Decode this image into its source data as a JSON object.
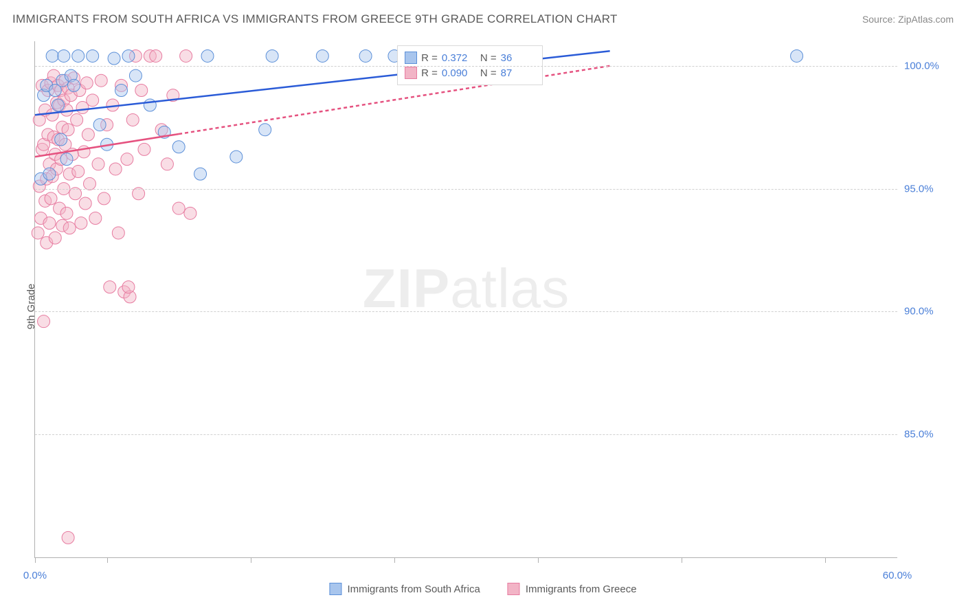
{
  "title": "IMMIGRANTS FROM SOUTH AFRICA VS IMMIGRANTS FROM GREECE 9TH GRADE CORRELATION CHART",
  "source": "Source: ZipAtlas.com",
  "watermark_zip": "ZIP",
  "watermark_atlas": "atlas",
  "chart": {
    "type": "scatter",
    "ylabel": "9th Grade",
    "ylim": [
      80,
      101
    ],
    "xlim": [
      0,
      60
    ],
    "y_ticks": [
      85,
      90,
      95,
      100
    ],
    "y_tick_labels": [
      "85.0%",
      "90.0%",
      "95.0%",
      "100.0%"
    ],
    "x_ticks": [
      0,
      5,
      15,
      25,
      35,
      45,
      55
    ],
    "x_tick_labels": {
      "left": "0.0%",
      "right": "60.0%"
    },
    "grid_color": "#d0d0d0",
    "axis_color": "#b0b0b0",
    "marker_radius": 9,
    "marker_opacity": 0.45,
    "series": [
      {
        "name": "Immigrants from South Africa",
        "color_fill": "#a8c5ed",
        "color_stroke": "#5b8fd8",
        "line_color": "#2a5bd7",
        "line_width": 2.5,
        "line_dash": "none",
        "r_value": "0.372",
        "n_value": "36",
        "regression": {
          "x1": 0,
          "y1": 98.0,
          "x2": 40,
          "y2": 100.6
        },
        "points": [
          [
            0.4,
            95.4
          ],
          [
            0.6,
            98.8
          ],
          [
            0.8,
            99.2
          ],
          [
            1.0,
            95.6
          ],
          [
            1.2,
            100.4
          ],
          [
            1.4,
            99.0
          ],
          [
            1.6,
            98.4
          ],
          [
            1.9,
            99.4
          ],
          [
            2.0,
            100.4
          ],
          [
            2.2,
            96.2
          ],
          [
            2.5,
            99.6
          ],
          [
            2.7,
            99.2
          ],
          [
            3.0,
            100.4
          ],
          [
            4.0,
            100.4
          ],
          [
            4.5,
            97.6
          ],
          [
            5.0,
            96.8
          ],
          [
            5.5,
            100.3
          ],
          [
            6.0,
            99.0
          ],
          [
            6.5,
            100.4
          ],
          [
            7.0,
            99.6
          ],
          [
            8.0,
            98.4
          ],
          [
            9.0,
            97.3
          ],
          [
            10.0,
            96.7
          ],
          [
            11.5,
            95.6
          ],
          [
            12.0,
            100.4
          ],
          [
            14.0,
            96.3
          ],
          [
            16.0,
            97.4
          ],
          [
            16.5,
            100.4
          ],
          [
            20.0,
            100.4
          ],
          [
            23.0,
            100.4
          ],
          [
            25.0,
            100.4
          ],
          [
            30.0,
            100.4
          ],
          [
            30.5,
            100.4
          ],
          [
            32.0,
            100.4
          ],
          [
            53.0,
            100.4
          ],
          [
            1.8,
            97.0
          ]
        ]
      },
      {
        "name": "Immigrants from Greece",
        "color_fill": "#f2b4c6",
        "color_stroke": "#e77ba0",
        "line_color": "#e5517f",
        "line_width": 2.5,
        "line_dash": "5,4",
        "r_value": "0.090",
        "n_value": "87",
        "regression": {
          "x1": 0,
          "y1": 96.3,
          "x2": 40,
          "y2": 100.0
        },
        "regression_solid_until_x": 10,
        "points": [
          [
            0.2,
            93.2
          ],
          [
            0.3,
            95.1
          ],
          [
            0.3,
            97.8
          ],
          [
            0.4,
            93.8
          ],
          [
            0.5,
            99.2
          ],
          [
            0.5,
            96.6
          ],
          [
            0.6,
            89.6
          ],
          [
            0.6,
            96.8
          ],
          [
            0.7,
            94.5
          ],
          [
            0.7,
            98.2
          ],
          [
            0.8,
            95.4
          ],
          [
            0.8,
            92.8
          ],
          [
            0.9,
            99.0
          ],
          [
            0.9,
            97.2
          ],
          [
            1.0,
            93.6
          ],
          [
            1.0,
            96.0
          ],
          [
            1.1,
            99.3
          ],
          [
            1.1,
            94.6
          ],
          [
            1.2,
            98.0
          ],
          [
            1.2,
            95.5
          ],
          [
            1.3,
            99.6
          ],
          [
            1.3,
            97.1
          ],
          [
            1.4,
            96.4
          ],
          [
            1.4,
            93.0
          ],
          [
            1.5,
            98.5
          ],
          [
            1.5,
            95.8
          ],
          [
            1.6,
            99.2
          ],
          [
            1.6,
            97.0
          ],
          [
            1.7,
            94.2
          ],
          [
            1.7,
            98.4
          ],
          [
            1.8,
            96.2
          ],
          [
            1.8,
            99.0
          ],
          [
            1.9,
            93.5
          ],
          [
            1.9,
            97.5
          ],
          [
            2.0,
            98.6
          ],
          [
            2.0,
            95.0
          ],
          [
            2.1,
            99.4
          ],
          [
            2.1,
            96.8
          ],
          [
            2.2,
            94.0
          ],
          [
            2.2,
            98.2
          ],
          [
            2.3,
            97.4
          ],
          [
            2.3,
            99.1
          ],
          [
            2.4,
            95.6
          ],
          [
            2.4,
            93.4
          ],
          [
            2.5,
            98.8
          ],
          [
            2.6,
            96.4
          ],
          [
            2.7,
            99.5
          ],
          [
            2.8,
            94.8
          ],
          [
            2.9,
            97.8
          ],
          [
            3.0,
            95.7
          ],
          [
            3.1,
            99.0
          ],
          [
            3.2,
            93.6
          ],
          [
            3.3,
            98.3
          ],
          [
            3.4,
            96.5
          ],
          [
            3.5,
            94.4
          ],
          [
            3.6,
            99.3
          ],
          [
            3.7,
            97.2
          ],
          [
            3.8,
            95.2
          ],
          [
            4.0,
            98.6
          ],
          [
            4.2,
            93.8
          ],
          [
            4.4,
            96.0
          ],
          [
            4.6,
            99.4
          ],
          [
            4.8,
            94.6
          ],
          [
            5.0,
            97.6
          ],
          [
            5.2,
            91.0
          ],
          [
            5.4,
            98.4
          ],
          [
            5.6,
            95.8
          ],
          [
            5.8,
            93.2
          ],
          [
            6.0,
            99.2
          ],
          [
            6.2,
            90.8
          ],
          [
            6.4,
            96.2
          ],
          [
            6.6,
            90.6
          ],
          [
            6.8,
            97.8
          ],
          [
            7.0,
            100.4
          ],
          [
            7.2,
            94.8
          ],
          [
            7.4,
            99.0
          ],
          [
            7.6,
            96.6
          ],
          [
            8.0,
            100.4
          ],
          [
            8.4,
            100.4
          ],
          [
            8.8,
            97.4
          ],
          [
            9.2,
            96.0
          ],
          [
            9.6,
            98.8
          ],
          [
            10.0,
            94.2
          ],
          [
            10.5,
            100.4
          ],
          [
            10.8,
            94.0
          ],
          [
            2.3,
            80.8
          ],
          [
            6.5,
            91.0
          ]
        ]
      }
    ],
    "legend_labels": {
      "series1": "Immigrants from South Africa",
      "series2": "Immigrants from Greece"
    },
    "stats_labels": {
      "r": "R =",
      "n": "N ="
    }
  }
}
